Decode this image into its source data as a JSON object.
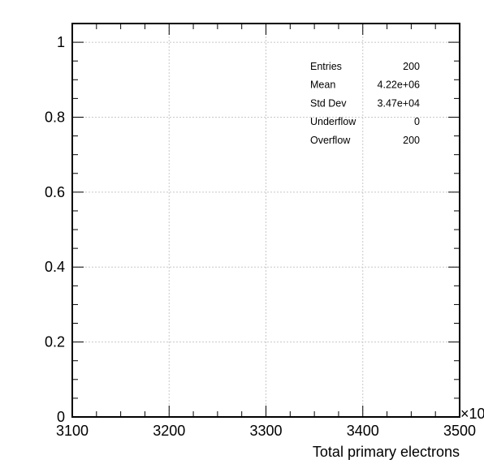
{
  "chart_data": {
    "type": "bar",
    "title": "",
    "xlabel": "Total primary electrons",
    "ylabel": "",
    "x_multiplier_label": "×10",
    "xlim": [
      3100,
      3500
    ],
    "ylim": [
      0,
      1.05
    ],
    "x_major_ticks": [
      3100,
      3200,
      3300,
      3400,
      3500
    ],
    "x_tick_labels": [
      "3100",
      "3200",
      "3300",
      "3400",
      "3500"
    ],
    "y_major_ticks": [
      0,
      0.2,
      0.4,
      0.6,
      0.8,
      1
    ],
    "y_tick_labels": [
      "0",
      "0.2",
      "0.4",
      "0.6",
      "0.8",
      "1"
    ],
    "grid": true,
    "series": [
      {
        "values": [],
        "color": "#006400"
      }
    ],
    "stats_box": {
      "placement": "top-right",
      "rows": [
        {
          "label": "Entries",
          "value": "200"
        },
        {
          "label": "Mean",
          "value": "4.22e+06"
        },
        {
          "label": "Std Dev",
          "value": "3.47e+04"
        },
        {
          "label": "Underflow",
          "value": "0"
        },
        {
          "label": "Overflow",
          "value": "200"
        }
      ]
    }
  }
}
